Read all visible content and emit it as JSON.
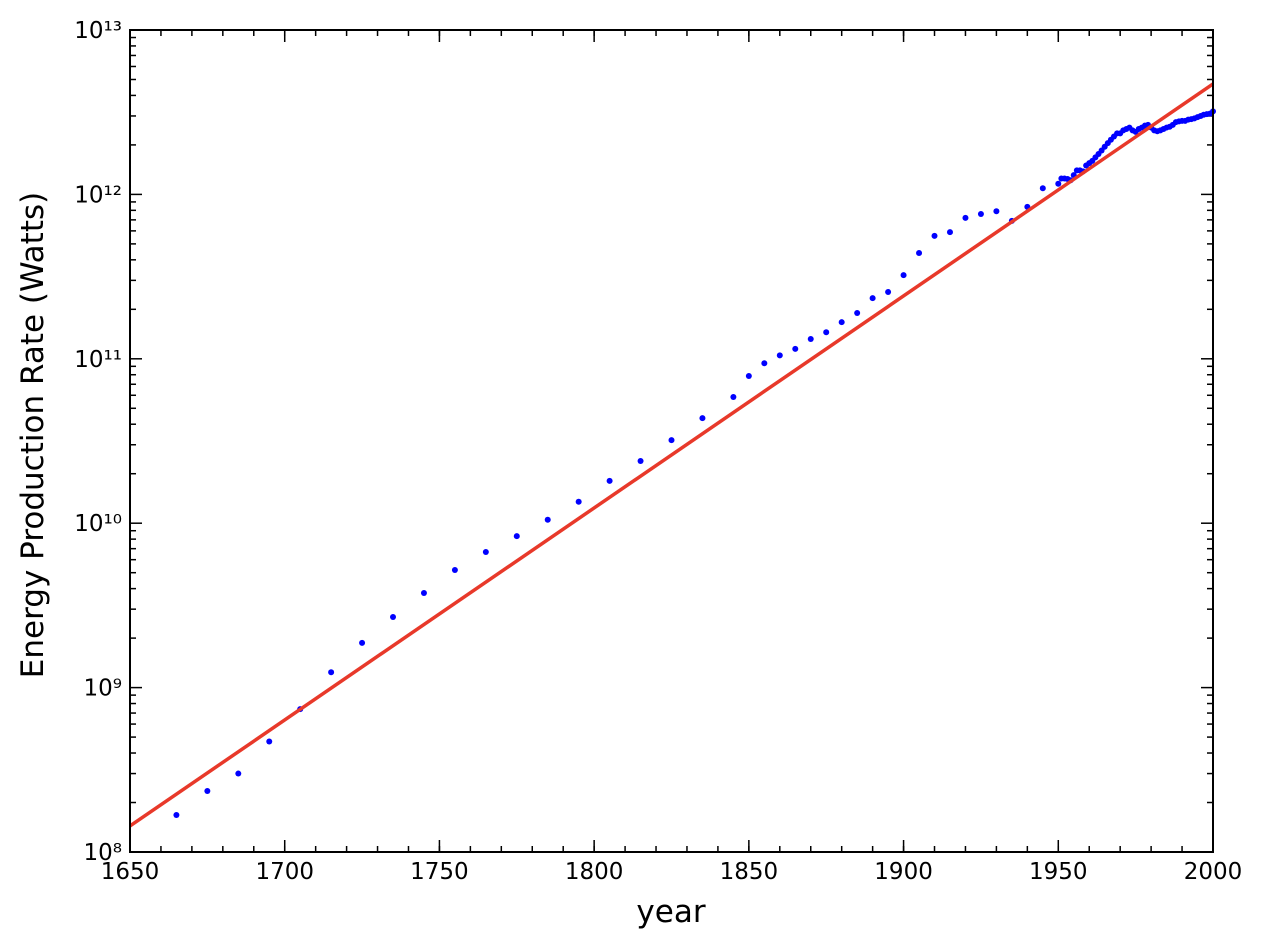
{
  "chart_data": {
    "type": "scatter",
    "ylog": true,
    "xlabel": "year",
    "ylabel": "Energy Production Rate (Watts)",
    "xlim": [
      1650,
      2000
    ],
    "xticks": [
      1650,
      1700,
      1750,
      1800,
      1850,
      1900,
      1950,
      2000
    ],
    "ylim": [
      100000000.0,
      10000000000000.0
    ],
    "yticks": [
      {
        "value": 100000000.0,
        "label": "10⁸"
      },
      {
        "value": 1000000000.0,
        "label": "10⁹"
      },
      {
        "value": 10000000000.0,
        "label": "10¹⁰"
      },
      {
        "value": 100000000000.0,
        "label": "10¹¹"
      },
      {
        "value": 1000000000000.0,
        "label": "10¹²"
      },
      {
        "value": 10000000000000.0,
        "label": "10¹³"
      }
    ],
    "series": [
      {
        "style": "points",
        "color": "#0000ff",
        "x": [
          1665,
          1675,
          1685,
          1695,
          1705,
          1715,
          1725,
          1735,
          1745,
          1755,
          1765,
          1775,
          1785,
          1795,
          1805,
          1815,
          1825,
          1835,
          1845,
          1850,
          1855,
          1860,
          1865,
          1870,
          1875,
          1880,
          1885,
          1890,
          1895,
          1900,
          1905,
          1910,
          1915,
          1920,
          1925,
          1930,
          1935,
          1940,
          1945,
          1950,
          1951,
          1952,
          1953,
          1954,
          1955,
          1956,
          1957,
          1958,
          1959,
          1960,
          1961,
          1962,
          1963,
          1964,
          1965,
          1966,
          1967,
          1968,
          1969,
          1970,
          1971,
          1972,
          1973,
          1974,
          1975,
          1976,
          1977,
          1978,
          1979,
          1980,
          1981,
          1982,
          1983,
          1984,
          1985,
          1986,
          1987,
          1988,
          1989,
          1990,
          1991,
          1992,
          1993,
          1994,
          1995,
          1996,
          1997,
          1998,
          1999,
          2000
        ],
        "values": [
          168000000.0,
          235000000.0,
          300000000.0,
          470000000.0,
          740000000.0,
          1240000000.0,
          1870000000.0,
          2690000000.0,
          3760000000.0,
          5190000000.0,
          6680000000.0,
          8350000000.0,
          10500000000.0,
          13500000000.0,
          18100000000.0,
          23900000000.0,
          32000000000.0,
          43600000000.0,
          58600000000.0,
          78600000000.0,
          94000000000.0,
          105000000000.0,
          115000000000.0,
          132000000000.0,
          145000000000.0,
          167000000000.0,
          190000000000.0,
          234000000000.0,
          255000000000.0,
          323000000000.0,
          440000000000.0,
          559000000000.0,
          590000000000.0,
          720000000000.0,
          760000000000.0,
          790000000000.0,
          690000000000.0,
          840000000000.0,
          1090000000000.0,
          1160000000000.0,
          1250000000000.0,
          1250000000000.0,
          1240000000000.0,
          1220000000000.0,
          1310000000000.0,
          1400000000000.0,
          1400000000000.0,
          1380000000000.0,
          1500000000000.0,
          1550000000000.0,
          1600000000000.0,
          1680000000000.0,
          1760000000000.0,
          1850000000000.0,
          1950000000000.0,
          2050000000000.0,
          2150000000000.0,
          2250000000000.0,
          2350000000000.0,
          2350000000000.0,
          2450000000000.0,
          2500000000000.0,
          2550000000000.0,
          2450000000000.0,
          2400000000000.0,
          2500000000000.0,
          2550000000000.0,
          2620000000000.0,
          2650000000000.0,
          2550000000000.0,
          2450000000000.0,
          2420000000000.0,
          2450000000000.0,
          2500000000000.0,
          2550000000000.0,
          2580000000000.0,
          2650000000000.0,
          2750000000000.0,
          2780000000000.0,
          2800000000000.0,
          2800000000000.0,
          2850000000000.0,
          2870000000000.0,
          2900000000000.0,
          2950000000000.0,
          3000000000000.0,
          3050000000000.0,
          3080000000000.0,
          3100000000000.0,
          3200000000000.0
        ]
      },
      {
        "style": "line",
        "color": "#e8392a",
        "x": [
          1650,
          2000
        ],
        "values": [
          144000000.0,
          4700000000000.0
        ]
      }
    ]
  }
}
